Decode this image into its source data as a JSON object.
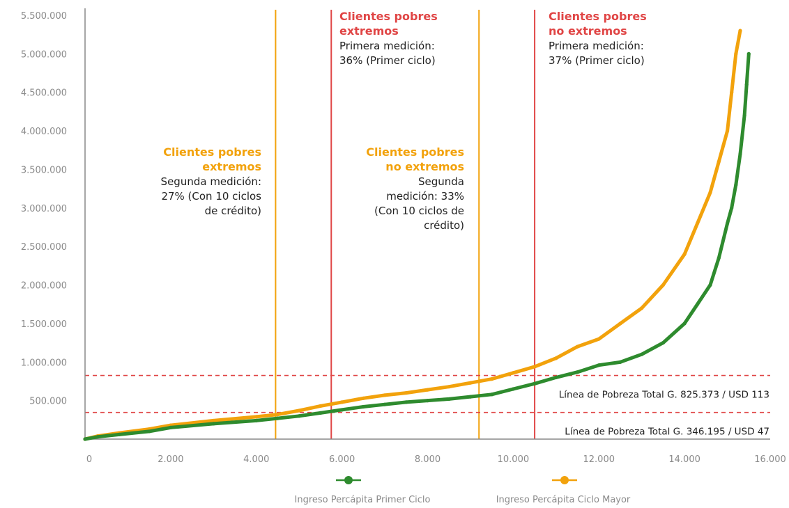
{
  "colors": {
    "green": "#2e8b2e",
    "orange": "#f2a20c",
    "red": "#e04545",
    "axis": "#888888",
    "tick_text": "#8a8a8a"
  },
  "chart_data": {
    "type": "line",
    "xlim": [
      0,
      16000
    ],
    "ylim": [
      0,
      5500000
    ],
    "x_ticks": [
      0,
      2000,
      4000,
      6000,
      8000,
      10000,
      12000,
      14000,
      16000
    ],
    "x_tick_labels": [
      "0",
      "2.000",
      "4.000",
      "6.000",
      "8.000",
      "10.000",
      "12.000",
      "14.000",
      "16.000"
    ],
    "y_ticks": [
      500000,
      1000000,
      1500000,
      2000000,
      2500000,
      3000000,
      3500000,
      4000000,
      4500000,
      5000000,
      5500000
    ],
    "y_tick_labels": [
      "500.000",
      "1.000.000",
      "1.500.000",
      "2.000.000",
      "2.500.000",
      "3.000.000",
      "3.500.000",
      "4.000.000",
      "4.500.000",
      "5.000.000",
      "5.500.000"
    ],
    "grid": false,
    "legend_position": "bottom",
    "series": [
      {
        "name": "Ingreso Percápita Primer Ciclo",
        "color": "#2e8b2e",
        "x": [
          0,
          300,
          800,
          1500,
          2000,
          3000,
          4000,
          4500,
          5000,
          5500,
          6000,
          6500,
          7000,
          7500,
          8000,
          8500,
          9000,
          9500,
          10000,
          10500,
          11000,
          11500,
          12000,
          12500,
          13000,
          13500,
          14000,
          14300,
          14600,
          14800,
          15000,
          15100,
          15200,
          15300,
          15400,
          15450,
          15500
        ],
        "y": [
          0,
          30000,
          60000,
          100000,
          150000,
          200000,
          240000,
          270000,
          300000,
          340000,
          380000,
          420000,
          450000,
          480000,
          500000,
          520000,
          550000,
          580000,
          650000,
          720000,
          800000,
          870000,
          960000,
          1000000,
          1100000,
          1250000,
          1500000,
          1750000,
          2000000,
          2350000,
          2800000,
          3000000,
          3300000,
          3700000,
          4200000,
          4600000,
          5000000
        ]
      },
      {
        "name": "Ingreso Percápita Ciclo Mayor",
        "color": "#f2a20c",
        "x": [
          0,
          300,
          800,
          1500,
          2000,
          3000,
          4000,
          4500,
          5000,
          5500,
          6000,
          6500,
          7000,
          7500,
          8000,
          8500,
          9000,
          9500,
          10000,
          10500,
          11000,
          11500,
          12000,
          12500,
          13000,
          13500,
          14000,
          14300,
          14600,
          14800,
          15000,
          15100,
          15200,
          15300
        ],
        "y": [
          0,
          40000,
          80000,
          130000,
          180000,
          240000,
          290000,
          320000,
          370000,
          430000,
          480000,
          530000,
          570000,
          600000,
          640000,
          680000,
          730000,
          780000,
          860000,
          940000,
          1050000,
          1200000,
          1300000,
          1500000,
          1700000,
          2000000,
          2400000,
          2800000,
          3200000,
          3600000,
          4000000,
          4500000,
          5000000,
          5300000
        ]
      }
    ],
    "vertical_lines": [
      {
        "x": 4450,
        "color": "#f2a20c"
      },
      {
        "x": 5750,
        "color": "#e04545"
      },
      {
        "x": 9200,
        "color": "#f2a20c"
      },
      {
        "x": 10500,
        "color": "#e04545"
      }
    ],
    "poverty_lines": [
      {
        "y": 825373,
        "label": "Línea de Pobreza Total G. 825.373 / USD 113"
      },
      {
        "y": 346195,
        "label": "Línea de Pobreza Total G. 346.195 / USD 47"
      }
    ],
    "annotations": {
      "red_left": {
        "title_lines": [
          "Clientes pobres",
          "extremos"
        ],
        "text_lines": [
          "Primera medición:",
          "36% (Primer ciclo)"
        ]
      },
      "red_right": {
        "title_lines": [
          "Clientes pobres",
          "no extremos"
        ],
        "text_lines": [
          "Primera medición:",
          "37% (Primer ciclo)"
        ]
      },
      "orange_left": {
        "title_lines": [
          "Clientes pobres",
          "extremos"
        ],
        "text_lines": [
          "Segunda medición:",
          "27% (Con 10 ciclos",
          "de crédito)"
        ]
      },
      "orange_right": {
        "title_lines": [
          "Clientes pobres",
          "no extremos"
        ],
        "text_lines": [
          "Segunda",
          "medición: 33%",
          "(Con 10 ciclos de",
          "crédito)"
        ]
      }
    }
  }
}
